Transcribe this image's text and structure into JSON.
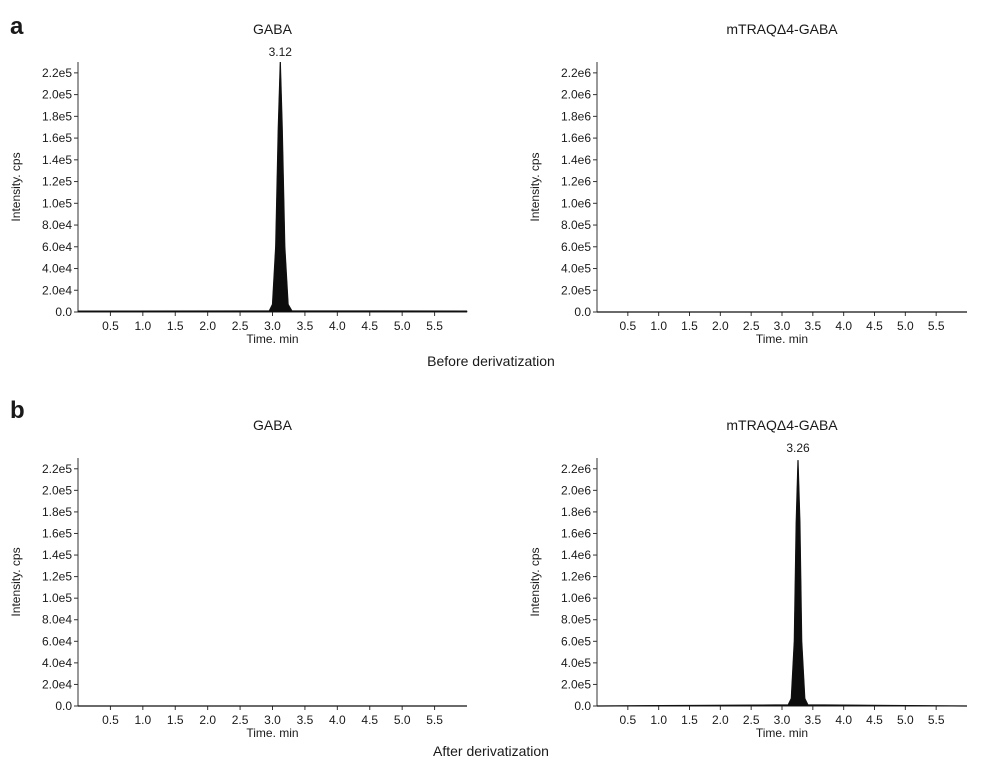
{
  "panels": [
    {
      "letter": "a",
      "caption": "Before derivatization"
    },
    {
      "letter": "b",
      "caption": "After derivatization"
    }
  ],
  "chart_data": [
    {
      "type": "line",
      "panel": "a",
      "title": "GABA",
      "xlabel": "Time. min",
      "ylabel": "Intensity. cps",
      "xlim": [
        0.0,
        6.0
      ],
      "ylim": [
        0,
        230000
      ],
      "x_ticks": [
        "0.5",
        "1.0",
        "1.5",
        "2.0",
        "2.5",
        "3.0",
        "3.5",
        "4.0",
        "4.5",
        "5.0",
        "5.5"
      ],
      "y_ticks": [
        "0.0",
        "2.0e4",
        "4.0e4",
        "6.0e4",
        "8.0e4",
        "1.0e5",
        "1.2e5",
        "1.4e5",
        "1.6e5",
        "1.8e5",
        "2.0e5",
        "2.2e5"
      ],
      "series": [
        {
          "x": [
            0.0,
            2.95,
            3.0,
            3.05,
            3.09,
            3.12,
            3.15,
            3.19,
            3.24,
            3.3,
            6.0
          ],
          "y": [
            800,
            1000,
            7000,
            60000,
            170000,
            230000,
            170000,
            60000,
            7000,
            1000,
            800
          ]
        }
      ],
      "peak_annotation": {
        "x": 3.12,
        "label": "3.12"
      }
    },
    {
      "type": "line",
      "panel": "a",
      "title": "mTRAQΔ4-GABA",
      "xlabel": "Time. min",
      "ylabel": "Intensity. cps",
      "xlim": [
        0.0,
        6.0
      ],
      "ylim": [
        0,
        2300000
      ],
      "x_ticks": [
        "0.5",
        "1.0",
        "1.5",
        "2.0",
        "2.5",
        "3.0",
        "3.5",
        "4.0",
        "4.5",
        "5.0",
        "5.5"
      ],
      "y_ticks": [
        "0.0",
        "2.0e5",
        "4.0e5",
        "6.0e5",
        "8.0e5",
        "1.0e6",
        "1.2e6",
        "1.4e6",
        "1.6e6",
        "1.8e6",
        "2.0e6",
        "2.2e6"
      ],
      "series": [
        {
          "x": [
            0.0,
            6.0
          ],
          "y": [
            0,
            0
          ]
        }
      ]
    },
    {
      "type": "line",
      "panel": "b",
      "title": "GABA",
      "xlabel": "Time. min",
      "ylabel": "Intensity. cps",
      "xlim": [
        0.0,
        6.0
      ],
      "ylim": [
        0,
        230000
      ],
      "x_ticks": [
        "0.5",
        "1.0",
        "1.5",
        "2.0",
        "2.5",
        "3.0",
        "3.5",
        "4.0",
        "4.5",
        "5.0",
        "5.5"
      ],
      "y_ticks": [
        "0.0",
        "2.0e4",
        "4.0e4",
        "6.0e4",
        "8.0e4",
        "1.0e5",
        "1.2e5",
        "1.4e5",
        "1.6e5",
        "1.8e5",
        "2.0e5",
        "2.2e5"
      ],
      "series": [
        {
          "x": [
            0.0,
            6.0
          ],
          "y": [
            0,
            0
          ]
        }
      ]
    },
    {
      "type": "line",
      "panel": "b",
      "title": "mTRAQΔ4-GABA",
      "xlabel": "Time. min",
      "ylabel": "Intensity. cps",
      "xlim": [
        0.0,
        6.0
      ],
      "ylim": [
        0,
        2300000
      ],
      "x_ticks": [
        "0.5",
        "1.0",
        "1.5",
        "2.0",
        "2.5",
        "3.0",
        "3.5",
        "4.0",
        "4.5",
        "5.0",
        "5.5"
      ],
      "y_ticks": [
        "0.0",
        "2.0e5",
        "4.0e5",
        "6.0e5",
        "8.0e5",
        "1.0e6",
        "1.2e6",
        "1.4e6",
        "1.6e6",
        "1.8e6",
        "2.0e6",
        "2.2e6"
      ],
      "series": [
        {
          "x": [
            0.0,
            3.1,
            3.15,
            3.2,
            3.23,
            3.26,
            3.29,
            3.32,
            3.37,
            3.42,
            6.0
          ],
          "y": [
            0,
            10000,
            70000,
            600000,
            1700000,
            2280000,
            1700000,
            600000,
            70000,
            10000,
            0
          ]
        }
      ],
      "peak_annotation": {
        "x": 3.26,
        "label": "3.26"
      }
    }
  ]
}
